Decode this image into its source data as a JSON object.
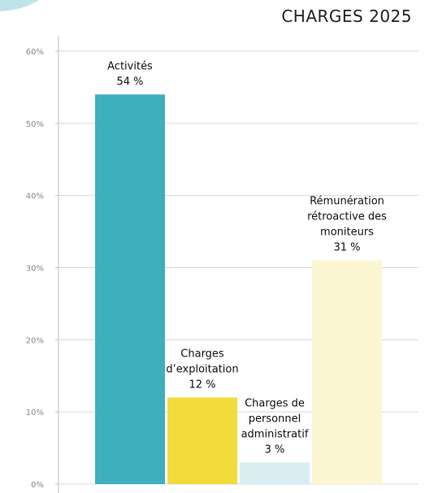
{
  "colors": {
    "background": "#ffffff",
    "grid": "#d9d9d9",
    "axis": "#bfbfbf",
    "tick_text": "#8a8a8a",
    "label_text": "#111111",
    "corner_deco": "#bfe3ea"
  },
  "chart_data": {
    "type": "bar",
    "title": "CHARGES 2025",
    "xlabel": "",
    "ylabel": "",
    "ylim": [
      0,
      60
    ],
    "grid": true,
    "legend": "none",
    "yticks": [
      {
        "value": 0,
        "label": "0%"
      },
      {
        "value": 10,
        "label": "10%"
      },
      {
        "value": 20,
        "label": "20%"
      },
      {
        "value": 30,
        "label": "30%"
      },
      {
        "value": 40,
        "label": "40%"
      },
      {
        "value": 50,
        "label": "50%"
      },
      {
        "value": 60,
        "label": "60%"
      }
    ],
    "bars": [
      {
        "category": "Activités",
        "value": 54,
        "value_label": "54 %",
        "label_lines": [
          "Activités"
        ],
        "color": "#3eafbf"
      },
      {
        "category": "Charges d’exploitation",
        "value": 12,
        "value_label": "12 %",
        "label_lines": [
          "Charges",
          "d’exploitation"
        ],
        "color": "#f2dc3c"
      },
      {
        "category": "Charges de personnel administratif",
        "value": 3,
        "value_label": "3 %",
        "label_lines": [
          "Charges de",
          "personnel",
          "administratif"
        ],
        "color": "#d9eef2"
      },
      {
        "category": "Rémunération rétroactive des moniteurs",
        "value": 31,
        "value_label": "31 %",
        "label_lines": [
          "Rémunération",
          "rétroactive des",
          "moniteurs"
        ],
        "color": "#fdf6d3"
      }
    ]
  }
}
